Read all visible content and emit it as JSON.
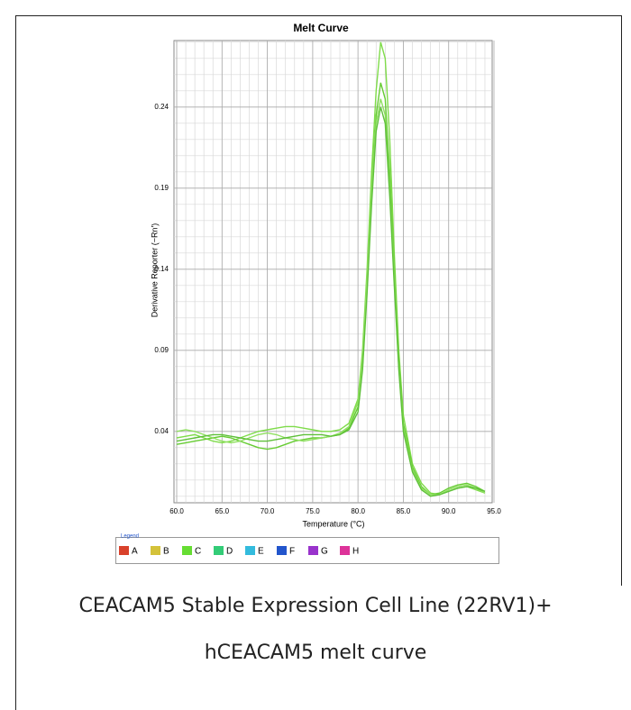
{
  "chart_data": {
    "type": "line",
    "title": "Melt Curve",
    "x_label": "Temperature (°C)",
    "y_label": "Derivative Reporter (−Rn′)",
    "xlim": [
      59.7,
      94.8
    ],
    "ylim": [
      -0.004,
      0.281
    ],
    "xticks": [
      {
        "value": 60,
        "label": "60.0"
      },
      {
        "value": 65,
        "label": "65.0"
      },
      {
        "value": 70,
        "label": "70.0"
      },
      {
        "value": 75,
        "label": "75.0"
      },
      {
        "value": 80,
        "label": "80.0"
      },
      {
        "value": 85,
        "label": "85.0"
      },
      {
        "value": 90,
        "label": "90.0"
      },
      {
        "value": 95,
        "label": "95.0"
      }
    ],
    "yticks": [
      0.04,
      0.09,
      0.14,
      0.19,
      0.24
    ],
    "grid": true,
    "x": [
      60,
      61,
      62,
      63,
      64,
      65,
      66,
      67,
      68,
      69,
      70,
      71,
      72,
      73,
      74,
      75,
      76,
      77,
      78,
      79,
      80,
      80.5,
      81,
      81.5,
      82,
      82.5,
      83,
      83.5,
      84,
      84.5,
      85,
      86,
      87,
      88,
      89,
      90,
      91,
      92,
      93,
      94
    ],
    "series": [
      {
        "color": "#7fdc4a",
        "values": [
          0.036,
          0.037,
          0.038,
          0.036,
          0.034,
          0.033,
          0.034,
          0.036,
          0.038,
          0.04,
          0.041,
          0.042,
          0.043,
          0.043,
          0.042,
          0.041,
          0.04,
          0.04,
          0.041,
          0.045,
          0.06,
          0.09,
          0.14,
          0.2,
          0.25,
          0.28,
          0.27,
          0.22,
          0.15,
          0.09,
          0.05,
          0.02,
          0.008,
          0.002,
          0.001,
          0.003,
          0.005,
          0.006,
          0.004,
          0.002
        ]
      },
      {
        "color": "#66cc33",
        "values": [
          0.032,
          0.033,
          0.034,
          0.035,
          0.036,
          0.037,
          0.036,
          0.034,
          0.032,
          0.03,
          0.029,
          0.03,
          0.032,
          0.034,
          0.035,
          0.036,
          0.036,
          0.037,
          0.038,
          0.042,
          0.055,
          0.08,
          0.13,
          0.19,
          0.235,
          0.255,
          0.245,
          0.2,
          0.14,
          0.085,
          0.045,
          0.018,
          0.006,
          0.001,
          0.002,
          0.005,
          0.007,
          0.008,
          0.006,
          0.003
        ]
      },
      {
        "color": "#8fe060",
        "values": [
          0.04,
          0.041,
          0.04,
          0.038,
          0.036,
          0.034,
          0.033,
          0.034,
          0.036,
          0.038,
          0.039,
          0.038,
          0.036,
          0.035,
          0.034,
          0.035,
          0.036,
          0.037,
          0.039,
          0.043,
          0.058,
          0.085,
          0.135,
          0.19,
          0.23,
          0.245,
          0.235,
          0.19,
          0.135,
          0.08,
          0.042,
          0.016,
          0.005,
          0.001,
          0.001,
          0.004,
          0.006,
          0.007,
          0.005,
          0.002
        ]
      },
      {
        "color": "#5fc03a",
        "values": [
          0.034,
          0.035,
          0.036,
          0.037,
          0.038,
          0.038,
          0.037,
          0.036,
          0.035,
          0.034,
          0.034,
          0.035,
          0.036,
          0.037,
          0.038,
          0.038,
          0.038,
          0.037,
          0.038,
          0.041,
          0.052,
          0.078,
          0.125,
          0.18,
          0.225,
          0.24,
          0.23,
          0.185,
          0.13,
          0.078,
          0.04,
          0.015,
          0.004,
          0.0,
          0.001,
          0.003,
          0.005,
          0.006,
          0.005,
          0.003
        ]
      }
    ],
    "legend_title": "Legend",
    "legend": [
      {
        "label": "A",
        "color": "#d9412b"
      },
      {
        "label": "B",
        "color": "#d4c23a"
      },
      {
        "label": "C",
        "color": "#66dd33"
      },
      {
        "label": "D",
        "color": "#33cc77"
      },
      {
        "label": "E",
        "color": "#33bbdd"
      },
      {
        "label": "F",
        "color": "#2255cc"
      },
      {
        "label": "G",
        "color": "#9933cc"
      },
      {
        "label": "H",
        "color": "#dd3399"
      }
    ],
    "caption": [
      "CEACAM5 Stable Expression Cell Line (22RV1)+",
      "hCEACAM5 melt curve"
    ]
  }
}
